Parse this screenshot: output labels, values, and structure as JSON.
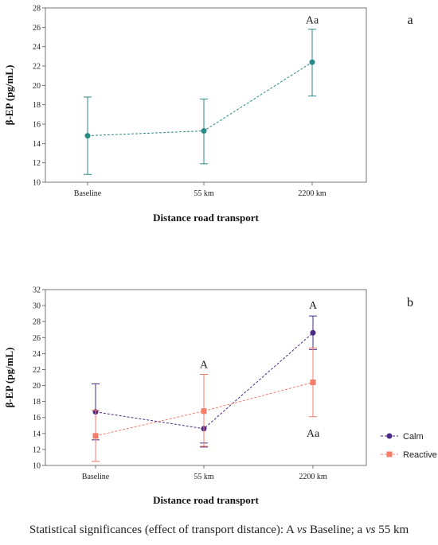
{
  "chart_data": [
    {
      "type": "line",
      "panel_label": "a",
      "categories": [
        "Baseline",
        "55 km",
        "2200 km"
      ],
      "xlabel": "Distance road transport",
      "ylabel": "β-EP (pg/mL)",
      "ylim": [
        10,
        28
      ],
      "yticks": [
        10,
        12,
        14,
        16,
        18,
        20,
        22,
        24,
        26,
        28
      ],
      "grid": false,
      "series": [
        {
          "name": "",
          "color": "#2a8a87",
          "marker": "circle",
          "values": [
            14.8,
            15.3,
            22.4
          ],
          "err_low": [
            10.8,
            11.9,
            18.9
          ],
          "err_high": [
            18.8,
            18.6,
            25.8
          ]
        }
      ],
      "annotations": [
        {
          "text": "Aa",
          "category": "2200 km",
          "y": 26.8
        }
      ]
    },
    {
      "type": "line",
      "panel_label": "b",
      "categories": [
        "Baseline",
        "55 km",
        "2200 km"
      ],
      "xlabel": "Distance road transport",
      "ylabel": "β-EP (pg/mL)",
      "ylim": [
        10,
        32
      ],
      "yticks": [
        10,
        12,
        14,
        16,
        18,
        20,
        22,
        24,
        26,
        28,
        30,
        32
      ],
      "grid": false,
      "legend": "right",
      "series": [
        {
          "name": "Calm",
          "color": "#4b2a86",
          "marker": "circle",
          "values": [
            16.7,
            14.6,
            26.6
          ],
          "err_low": [
            13.2,
            12.3,
            24.5
          ],
          "err_high": [
            20.2,
            12.8,
            28.7
          ]
        },
        {
          "name": "Reactive",
          "color": "#f47c6b",
          "marker": "square",
          "values": [
            13.7,
            16.8,
            20.4
          ],
          "err_low": [
            10.5,
            12.4,
            16.1
          ],
          "err_high": [
            16.9,
            21.4,
            24.7
          ]
        }
      ],
      "annotations": [
        {
          "text": "A",
          "category": "55 km",
          "y": 22.7
        },
        {
          "text": "A",
          "category": "2200 km",
          "y": 30.1
        },
        {
          "text": "Aa",
          "category": "2200 km",
          "y": 14.1
        }
      ]
    }
  ],
  "footnote": {
    "prefix": "Statistical significances (effect of transport distance): A ",
    "vs1": "vs",
    "middle": " Baseline; a ",
    "vs2": "vs",
    "suffix": " 55 km"
  }
}
